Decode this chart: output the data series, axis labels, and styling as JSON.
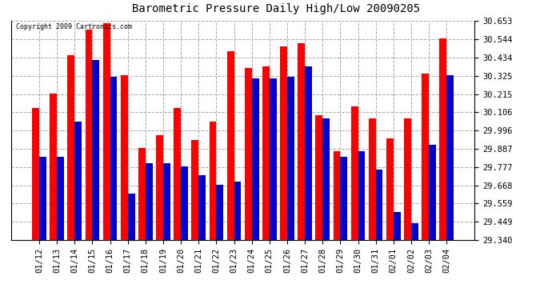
{
  "title": "Barometric Pressure Daily High/Low 20090205",
  "copyright": "Copyright 2009 Cartronics.com",
  "categories": [
    "01/12",
    "01/13",
    "01/14",
    "01/15",
    "01/16",
    "01/17",
    "01/18",
    "01/19",
    "01/20",
    "01/21",
    "01/22",
    "01/23",
    "01/24",
    "01/25",
    "01/26",
    "01/27",
    "01/28",
    "01/29",
    "01/30",
    "01/31",
    "02/01",
    "02/02",
    "02/03",
    "02/04"
  ],
  "highs": [
    30.13,
    30.22,
    30.45,
    30.6,
    30.64,
    30.33,
    29.89,
    29.97,
    30.13,
    29.94,
    30.05,
    30.47,
    30.37,
    30.38,
    30.5,
    30.52,
    30.09,
    29.87,
    30.14,
    30.07,
    29.95,
    30.07,
    30.34,
    30.55
  ],
  "lows": [
    29.84,
    29.84,
    30.05,
    30.42,
    30.32,
    29.62,
    29.8,
    29.8,
    29.78,
    29.73,
    29.67,
    29.69,
    30.31,
    30.31,
    30.32,
    30.38,
    30.07,
    29.84,
    29.87,
    29.76,
    29.51,
    29.44,
    29.91,
    30.33
  ],
  "high_color": "#ff0000",
  "low_color": "#0000cc",
  "bg_color": "#ffffff",
  "grid_color": "#aaaaaa",
  "ylim_min": 29.34,
  "ylim_max": 30.653,
  "yticks": [
    29.34,
    29.449,
    29.559,
    29.668,
    29.777,
    29.887,
    29.996,
    30.106,
    30.215,
    30.325,
    30.434,
    30.544,
    30.653
  ]
}
